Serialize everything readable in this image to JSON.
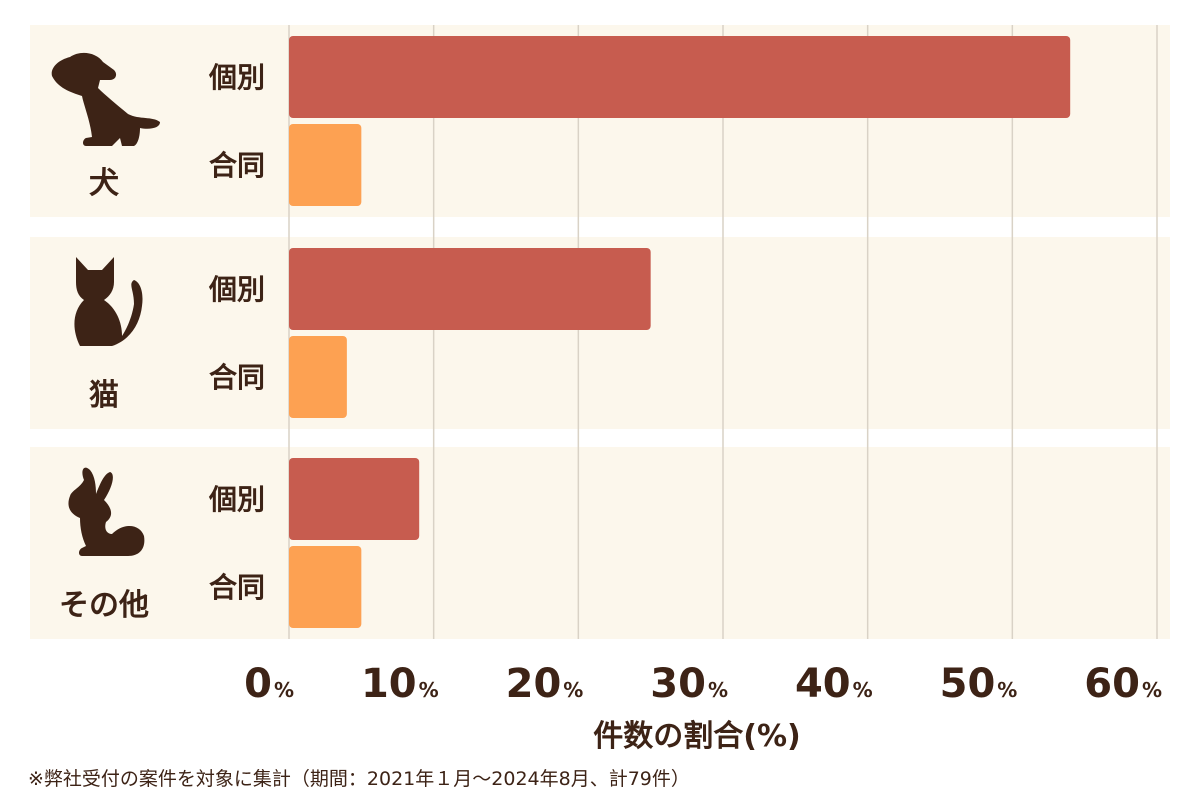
{
  "chart_data": {
    "type": "bar",
    "orientation": "horizontal",
    "groups": [
      {
        "name": "犬",
        "icon": "dog-icon",
        "values": [
          54,
          5
        ]
      },
      {
        "name": "猫",
        "icon": "cat-icon",
        "values": [
          25,
          4
        ]
      },
      {
        "name": "その他",
        "icon": "rabbit-icon",
        "values": [
          9,
          5
        ]
      }
    ],
    "series": [
      {
        "name": "個別",
        "color": "#c75c4f"
      },
      {
        "name": "合同",
        "color": "#fda152"
      }
    ],
    "xlabel": "件数の割合(%)",
    "xlim": [
      0,
      60
    ],
    "xticks": [
      "0",
      "10",
      "20",
      "30",
      "40",
      "50",
      "60"
    ],
    "tick_unit": "%",
    "grid": true
  },
  "footnote": "※弊社受付の案件を対象に集計（期間：2021年１月～2024年8月、計79件）"
}
